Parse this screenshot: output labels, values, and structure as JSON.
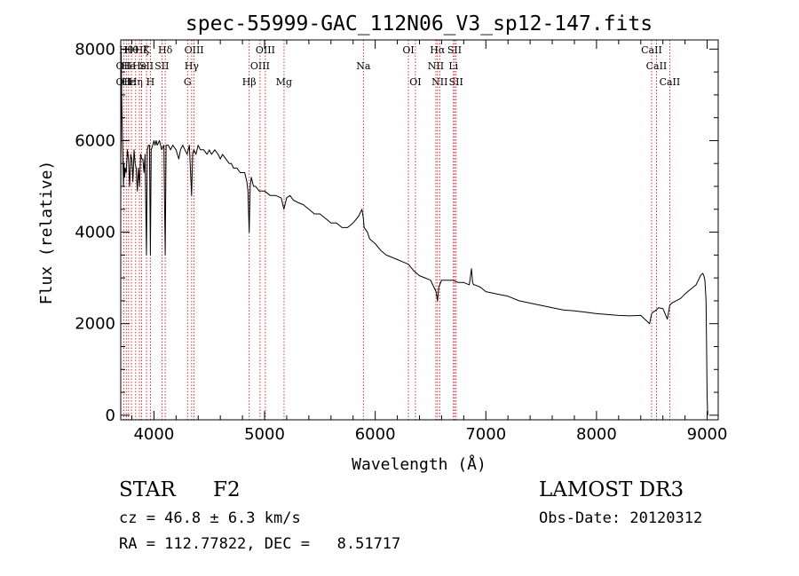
{
  "chart_data": {
    "type": "line",
    "title": "spec-55999-GAC_112N06_V3_sp12-147.fits",
    "xlabel": "Wavelength (Å)",
    "ylabel": "Flux (relative)",
    "xlim": [
      3700,
      9100
    ],
    "ylim": [
      -100,
      8200
    ],
    "x_ticks": [
      4000,
      5000,
      6000,
      7000,
      8000,
      9000
    ],
    "y_ticks": [
      0,
      2000,
      4000,
      6000,
      8000
    ],
    "series": [
      {
        "name": "flux",
        "x": [
          3700,
          3705,
          3710,
          3715,
          3720,
          3725,
          3730,
          3735,
          3740,
          3750,
          3760,
          3770,
          3780,
          3790,
          3800,
          3810,
          3820,
          3830,
          3840,
          3850,
          3860,
          3870,
          3880,
          3890,
          3900,
          3910,
          3920,
          3933,
          3940,
          3950,
          3960,
          3968,
          3975,
          3990,
          4000,
          4010,
          4020,
          4030,
          4050,
          4070,
          4090,
          4102,
          4110,
          4130,
          4150,
          4170,
          4200,
          4225,
          4240,
          4260,
          4280,
          4300,
          4320,
          4340,
          4350,
          4360,
          4380,
          4400,
          4420,
          4450,
          4480,
          4500,
          4520,
          4550,
          4580,
          4600,
          4620,
          4650,
          4680,
          4700,
          4720,
          4750,
          4780,
          4800,
          4820,
          4840,
          4850,
          4861,
          4870,
          4880,
          4890,
          4900,
          4920,
          4950,
          4980,
          5000,
          5050,
          5100,
          5150,
          5175,
          5200,
          5230,
          5260,
          5300,
          5350,
          5400,
          5450,
          5500,
          5550,
          5600,
          5650,
          5700,
          5750,
          5800,
          5850,
          5880,
          5893,
          5900,
          5930,
          5950,
          6000,
          6050,
          6100,
          6150,
          6200,
          6250,
          6300,
          6350,
          6400,
          6450,
          6500,
          6530,
          6550,
          6563,
          6575,
          6600,
          6650,
          6700,
          6750,
          6800,
          6850,
          6870,
          6880,
          6890,
          6900,
          6950,
          7000,
          7100,
          7200,
          7300,
          7400,
          7500,
          7600,
          7700,
          7800,
          7900,
          8000,
          8100,
          8200,
          8300,
          8400,
          8480,
          8498,
          8510,
          8542,
          8560,
          8600,
          8640,
          8662,
          8680,
          8720,
          8760,
          8800,
          8850,
          8900,
          8920,
          8940,
          8950,
          8960,
          8970,
          8980,
          8990,
          8995,
          9000,
          9005
        ],
        "y": [
          4500,
          7900,
          6800,
          6000,
          5600,
          5000,
          5500,
          5200,
          5400,
          5300,
          5800,
          5600,
          5000,
          5700,
          5600,
          5100,
          5800,
          5500,
          5400,
          4900,
          5400,
          5000,
          5700,
          5600,
          5600,
          5300,
          5700,
          3500,
          5800,
          5900,
          5900,
          3500,
          5800,
          5900,
          6000,
          5900,
          6000,
          5900,
          6000,
          5800,
          5900,
          3500,
          5900,
          5900,
          5800,
          5900,
          5800,
          5600,
          5800,
          5900,
          5800,
          5700,
          5900,
          4800,
          5700,
          5800,
          5700,
          5900,
          5800,
          5800,
          5700,
          5800,
          5700,
          5800,
          5700,
          5600,
          5700,
          5600,
          5500,
          5500,
          5400,
          5400,
          5300,
          5300,
          5300,
          5100,
          4900,
          4000,
          5000,
          5200,
          5100,
          5000,
          5000,
          4900,
          4900,
          4900,
          4800,
          4800,
          4750,
          4500,
          4750,
          4800,
          4700,
          4650,
          4600,
          4500,
          4400,
          4400,
          4300,
          4200,
          4200,
          4100,
          4100,
          4200,
          4350,
          4500,
          4300,
          4100,
          4000,
          3850,
          3750,
          3600,
          3500,
          3450,
          3400,
          3350,
          3300,
          3150,
          3050,
          3000,
          2950,
          2800,
          2700,
          2500,
          2800,
          2950,
          2950,
          2950,
          2900,
          2900,
          2850,
          3200,
          2900,
          2850,
          2850,
          2800,
          2700,
          2650,
          2600,
          2500,
          2450,
          2400,
          2350,
          2300,
          2280,
          2250,
          2220,
          2200,
          2180,
          2170,
          2180,
          2000,
          2220,
          2250,
          2300,
          2350,
          2330,
          2100,
          2400,
          2450,
          2500,
          2550,
          2650,
          2750,
          2850,
          2950,
          3050,
          3080,
          3100,
          3050,
          2950,
          2500,
          1500,
          400,
          0
        ]
      }
    ],
    "line_labels": [
      {
        "x": 3727,
        "row": 1,
        "text": "OII"
      },
      {
        "x": 3727,
        "row": 2,
        "text": "OII"
      },
      {
        "x": 3750,
        "row": 0,
        "text": "Hθ"
      },
      {
        "x": 3771,
        "row": 1,
        "text": "He"
      },
      {
        "x": 3771,
        "row": 2,
        "text": "Hε"
      },
      {
        "x": 3797,
        "row": 0,
        "text": "Hθ"
      },
      {
        "x": 3835,
        "row": 2,
        "text": "Hη"
      },
      {
        "x": 3869,
        "row": 1,
        "text": "He"
      },
      {
        "x": 3889,
        "row": 0,
        "text": "Hζ"
      },
      {
        "x": 3933,
        "row": 0,
        "text": "K"
      },
      {
        "x": 3933,
        "row": 1,
        "text": "SII"
      },
      {
        "x": 3968,
        "row": 2,
        "text": "H"
      },
      {
        "x": 4072,
        "row": 1,
        "text": "SII"
      },
      {
        "x": 4102,
        "row": 0,
        "text": "Hδ"
      },
      {
        "x": 4304,
        "row": 2,
        "text": "G"
      },
      {
        "x": 4341,
        "row": 1,
        "text": "Hγ"
      },
      {
        "x": 4363,
        "row": 0,
        "text": "OIII"
      },
      {
        "x": 4861,
        "row": 2,
        "text": "Hβ"
      },
      {
        "x": 4959,
        "row": 1,
        "text": "OIII"
      },
      {
        "x": 5007,
        "row": 0,
        "text": "OIII"
      },
      {
        "x": 5176,
        "row": 2,
        "text": "Mg"
      },
      {
        "x": 5893,
        "row": 1,
        "text": "Na"
      },
      {
        "x": 6300,
        "row": 0,
        "text": "OI"
      },
      {
        "x": 6363,
        "row": 2,
        "text": "OI"
      },
      {
        "x": 6548,
        "row": 1,
        "text": "NII"
      },
      {
        "x": 6563,
        "row": 0,
        "text": "Hα"
      },
      {
        "x": 6583,
        "row": 2,
        "text": "NII"
      },
      {
        "x": 6707,
        "row": 1,
        "text": "Li"
      },
      {
        "x": 6717,
        "row": 0,
        "text": "SII"
      },
      {
        "x": 6731,
        "row": 2,
        "text": "SII"
      },
      {
        "x": 8498,
        "row": 0,
        "text": "CaII"
      },
      {
        "x": 8542,
        "row": 1,
        "text": "CaII"
      },
      {
        "x": 8662,
        "row": 2,
        "text": "CaII"
      }
    ]
  },
  "info": {
    "class_label": "STAR",
    "subclass": "F2",
    "survey": "LAMOST DR3",
    "cz": "cz = 46.8 ± 6.3 km/s",
    "obs_date": "Obs-Date: 20120312",
    "coords": "RA = 112.77822, DEC =   8.51717"
  },
  "colors": {
    "axis": "#000000",
    "spectrum": "#000000",
    "line_marker": "#cc0000"
  }
}
